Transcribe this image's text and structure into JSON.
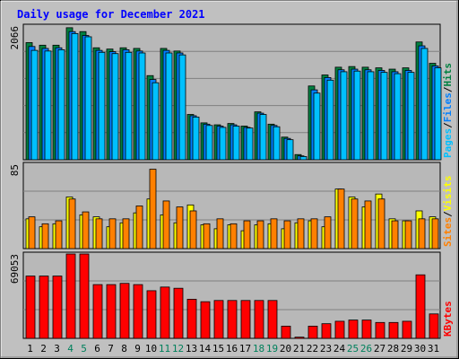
{
  "chart_data": {
    "type": "bar",
    "title": "Daily usage for December 2021",
    "categories": [
      "1",
      "2",
      "3",
      "4",
      "5",
      "6",
      "7",
      "8",
      "9",
      "10",
      "11",
      "12",
      "13",
      "14",
      "15",
      "16",
      "17",
      "18",
      "19",
      "20",
      "21",
      "22",
      "23",
      "24",
      "25",
      "26",
      "27",
      "28",
      "29",
      "30",
      "31"
    ],
    "weekend_days": [
      "4",
      "5",
      "11",
      "12",
      "18",
      "19",
      "25",
      "26"
    ],
    "panels": [
      {
        "id": "hits-files-pages",
        "max_label": "2066",
        "ylim": [
          0,
          2066
        ],
        "side_label": [
          "Pages",
          "/",
          "Files",
          "/",
          "Hits"
        ],
        "series": [
          {
            "name": "Hits",
            "color": "#008040",
            "values": [
              1810,
              1770,
              1770,
              2040,
              1980,
              1730,
              1710,
              1730,
              1720,
              1300,
              1720,
              1680,
              700,
              570,
              540,
              560,
              520,
              740,
              550,
              350,
              80,
              1140,
              1310,
              1430,
              1440,
              1430,
              1420,
              1400,
              1420,
              1820,
              1490
            ]
          },
          {
            "name": "Files",
            "color": "#0080ff",
            "values": [
              1750,
              1720,
              1730,
              1980,
              1920,
              1690,
              1670,
              1700,
              1680,
              1240,
              1690,
              1650,
              680,
              550,
              520,
              540,
              500,
              720,
              530,
              330,
              60,
              1080,
              1270,
              1390,
              1400,
              1390,
              1380,
              1360,
              1380,
              1760,
              1450
            ]
          },
          {
            "name": "Pages",
            "color": "#00c0ff",
            "values": [
              1690,
              1680,
              1700,
              1950,
              1900,
              1660,
              1640,
              1660,
              1650,
              1190,
              1650,
              1620,
              660,
              530,
              500,
              520,
              490,
              700,
              510,
              310,
              50,
              1030,
              1230,
              1360,
              1370,
              1360,
              1350,
              1330,
              1350,
              1720,
              1420
            ]
          }
        ]
      },
      {
        "id": "visits-sites",
        "max_label": "85",
        "ylim": [
          0,
          85
        ],
        "side_label": [
          "Sites",
          "/",
          "Visits"
        ],
        "series": [
          {
            "name": "Visits",
            "color": "#ffff00",
            "values": [
              30,
              22,
              25,
              52,
              34,
              32,
              22,
              26,
              36,
              50,
              34,
              26,
              44,
              24,
              20,
              24,
              18,
              24,
              25,
              20,
              26,
              28,
              22,
              60,
              52,
              42,
              55,
              30,
              28,
              38,
              32
            ]
          },
          {
            "name": "Sites",
            "color": "#ff8000",
            "values": [
              32,
              25,
              28,
              50,
              37,
              30,
              30,
              30,
              43,
              80,
              48,
              42,
              38,
              25,
              30,
              25,
              28,
              28,
              30,
              28,
              30,
              30,
              32,
              60,
              50,
              48,
              50,
              28,
              28,
              30,
              30
            ]
          }
        ]
      },
      {
        "id": "kbytes",
        "max_label": "69053",
        "ylim": [
          0,
          69053
        ],
        "side_label": [
          "KBytes"
        ],
        "series": [
          {
            "name": "KBytes",
            "color": "#ff0000",
            "values": [
              51000,
              51000,
              51000,
              69053,
              69053,
              44000,
              44000,
              45000,
              44000,
              39000,
              42000,
              41000,
              32000,
              30000,
              31000,
              31000,
              31000,
              31000,
              31000,
              10000,
              1000,
              10000,
              12000,
              14000,
              15000,
              15000,
              13000,
              13000,
              14000,
              52000,
              20000
            ]
          }
        ]
      }
    ],
    "colors": {
      "title": "#0000ff",
      "weekday_label": "#000000",
      "weekend_label": "#00805c",
      "background": "#c0c0c0",
      "plot_bg": "#b8b8b8",
      "gridline": "#808080"
    }
  }
}
